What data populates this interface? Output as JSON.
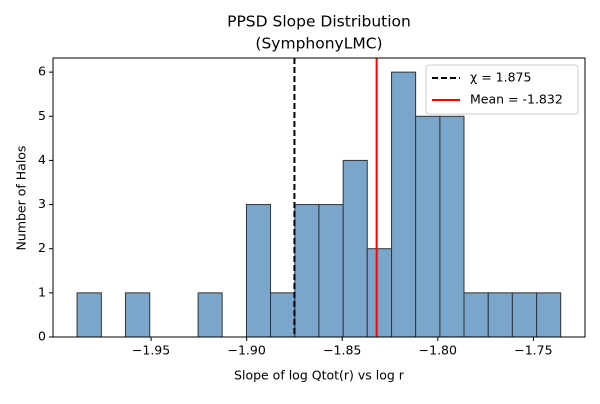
{
  "chart_data": {
    "type": "histogram",
    "title": "PPSD Slope Distribution",
    "subtitle": "(SymphonyLMC)",
    "xlabel": "Slope of log Qtot(r) vs log r",
    "ylabel": "Number of Halos",
    "bins": [
      -1.9887,
      -1.976,
      -1.9634,
      -1.9507,
      -1.9381,
      -1.9254,
      -1.9128,
      -1.9001,
      -1.8875,
      -1.8748,
      -1.8622,
      -1.8495,
      -1.8369,
      -1.8242,
      -1.8116,
      -1.7989,
      -1.7863,
      -1.7736,
      -1.761,
      -1.7483,
      -1.7357
    ],
    "values": [
      1,
      0,
      1,
      0,
      0,
      1,
      0,
      3,
      1,
      3,
      3,
      4,
      2,
      6,
      5,
      5,
      1,
      1,
      1,
      1
    ],
    "color": "#7aa6cc",
    "edgecolor": "#333333",
    "xlim": [
      -2.0013,
      -1.723
    ],
    "ylim": [
      0,
      6.32
    ],
    "xticks": [
      {
        "value": -1.95,
        "label": "−1.95"
      },
      {
        "value": -1.9,
        "label": "−1.90"
      },
      {
        "value": -1.85,
        "label": "−1.85"
      },
      {
        "value": -1.8,
        "label": "−1.80"
      },
      {
        "value": -1.75,
        "label": "−1.75"
      }
    ],
    "yticks": [
      0,
      1,
      2,
      3,
      4,
      5,
      6
    ],
    "vlines": [
      {
        "name": "χ = 1.875",
        "value": -1.875,
        "color": "#000000",
        "dashed": true
      },
      {
        "name": "Mean = -1.832",
        "value": -1.832,
        "color": "#ff0000",
        "dashed": false
      }
    ],
    "legend": "upper right"
  }
}
